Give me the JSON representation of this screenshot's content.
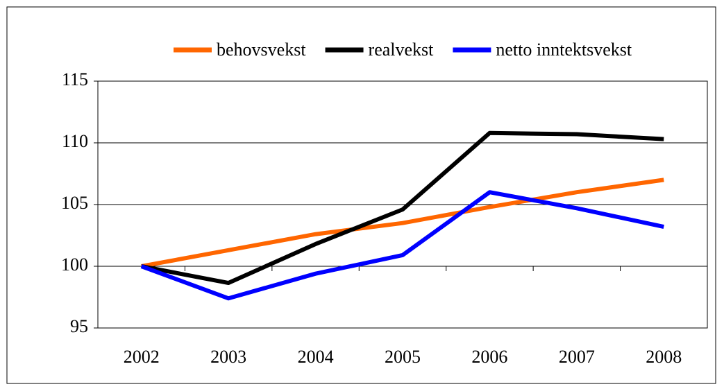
{
  "chart_data": {
    "type": "line",
    "categories": [
      "2002",
      "2003",
      "2004",
      "2005",
      "2006",
      "2007",
      "2008"
    ],
    "series": [
      {
        "name": "behovsvekst",
        "color": "#ff6600",
        "values": [
          100,
          101.3,
          102.6,
          103.5,
          104.8,
          106.0,
          107.0
        ]
      },
      {
        "name": "realvekst",
        "color": "#000000",
        "values": [
          100,
          98.65,
          101.8,
          104.6,
          110.8,
          110.7,
          110.3
        ]
      },
      {
        "name": "netto inntektsvekst",
        "color": "#0000ff",
        "values": [
          100,
          97.4,
          99.4,
          100.9,
          106.0,
          104.7,
          103.2
        ]
      }
    ],
    "ylim": [
      95,
      115
    ],
    "yticks": [
      95,
      100,
      105,
      110,
      115
    ],
    "grid": true,
    "legend": "top"
  }
}
